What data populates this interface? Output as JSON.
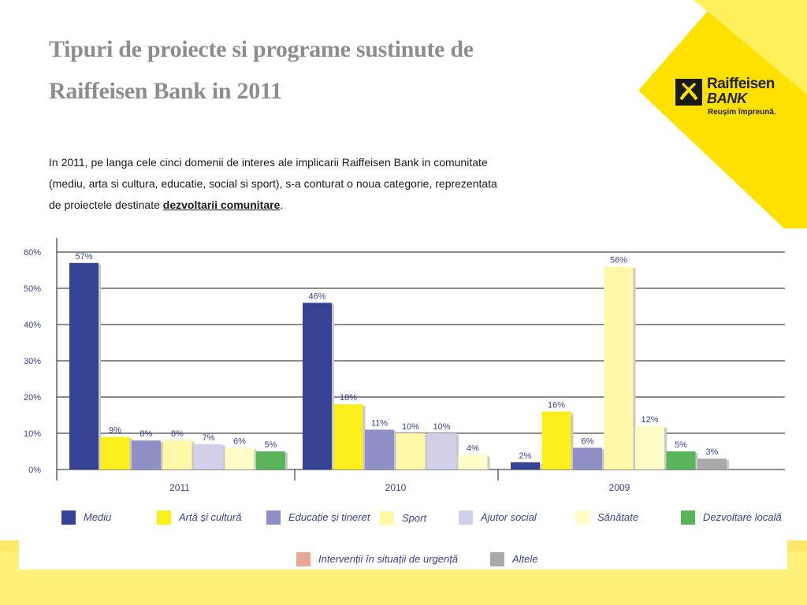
{
  "slide": {
    "title_line1": "Tipuri de proiecte si programe sustinute de",
    "title_line2": "Raiffeisen Bank in 2011",
    "intro_line1": "In 2011, pe langa cele cinci domenii de interes ale implicarii Raiffeisen Bank in comunitate",
    "intro_line2": "(mediu, arta si cultura, educatie, social si sport), s-a conturat o noua categorie, reprezentata",
    "intro_line3_prefix": "de proiectele destinate ",
    "intro_link": "dezvoltarii comunitare",
    "intro_line3_suffix": "."
  },
  "logo": {
    "brand_line1": "Raiffeisen",
    "brand_line2": "BANK",
    "slogan": "Reușim împreună.",
    "icon": "raiffeisen-gable-cross-icon"
  },
  "colors": {
    "accent_yellow": "#ffe100",
    "axis_text": "#3b3f8f"
  },
  "chart_data": {
    "type": "bar",
    "ylim": [
      0,
      60
    ],
    "yticks": [
      "0%",
      "10%",
      "20%",
      "30%",
      "40%",
      "50%",
      "60%"
    ],
    "ytick_values": [
      0,
      10,
      20,
      30,
      40,
      50,
      60
    ],
    "grid": true,
    "legend_placement": "bottom",
    "groups": [
      {
        "label": "2011",
        "bars": [
          {
            "series": "Mediu",
            "value": 57,
            "label": "57%"
          },
          {
            "series": "Artă și cultură",
            "value": 9,
            "label": "9%"
          },
          {
            "series": "Educație și tineret",
            "value": 8,
            "label": "8%"
          },
          {
            "series": "Sport",
            "value": 8,
            "label": "8%"
          },
          {
            "series": "Ajutor social",
            "value": 7,
            "label": "7%"
          },
          {
            "series": "Sănătate",
            "value": 6,
            "label": "6%"
          },
          {
            "series": "Dezvoltare locală",
            "value": 5,
            "label": "5%"
          }
        ]
      },
      {
        "label": "2010",
        "bars": [
          {
            "series": "Mediu",
            "value": 46,
            "label": "46%"
          },
          {
            "series": "Artă și cultură",
            "value": 18,
            "label": "18%"
          },
          {
            "series": "Educație și tineret",
            "value": 11,
            "label": "11%"
          },
          {
            "series": "Sport",
            "value": 10,
            "label": "10%"
          },
          {
            "series": "Ajutor social",
            "value": 10,
            "label": "10%"
          },
          {
            "series": "Sănătate",
            "value": 4,
            "label": "4%"
          }
        ]
      },
      {
        "label": "2009",
        "bars": [
          {
            "series": "Mediu",
            "value": 2,
            "label": "2%"
          },
          {
            "series": "Artă și cultură",
            "value": 16,
            "label": "16%"
          },
          {
            "series": "Educație și tineret",
            "value": 6,
            "label": "6%"
          },
          {
            "series": "Sport",
            "value": 56,
            "label": "56%"
          },
          {
            "series": "Sănătate",
            "value": 12,
            "label": "12%"
          },
          {
            "series": "Dezvoltare locală",
            "value": 5,
            "label": "5%"
          },
          {
            "series": "Altele",
            "value": 3,
            "label": "3%"
          }
        ]
      }
    ],
    "legend": [
      {
        "name": "Mediu",
        "color": "#364394"
      },
      {
        "name": "Artă și cultură",
        "color": "#fbef1c"
      },
      {
        "name": "Educație și tineret",
        "color": "#8e8fc4"
      },
      {
        "name": "Sport",
        "color": "#fdf7a7"
      },
      {
        "name": "Ajutor social",
        "color": "#d1d0ea"
      },
      {
        "name": "Sănătate",
        "color": "#fffcc8"
      },
      {
        "name": "Dezvoltare locală",
        "color": "#59b55a"
      },
      {
        "name": "Intervenții în situații de urgență",
        "color": "#e8a696"
      },
      {
        "name": "Altele",
        "color": "#a8a9ab"
      }
    ],
    "series_colors": {
      "Mediu": "#364394",
      "Artă și cultură": "#fbef1c",
      "Educație și tineret": "#8e8fc4",
      "Sport": "#fdf7a7",
      "Ajutor social": "#d1d0ea",
      "Sănătate": "#fffcc8",
      "Dezvoltare locală": "#59b55a",
      "Altele": "#a8a9ab"
    }
  }
}
